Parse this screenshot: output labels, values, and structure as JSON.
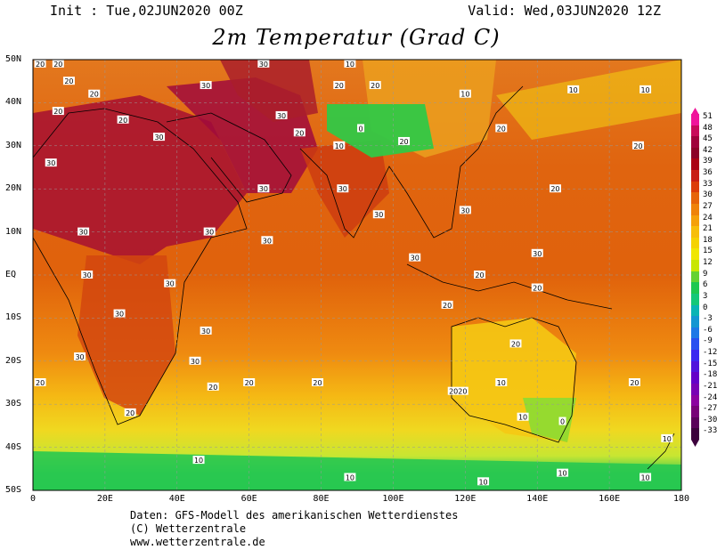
{
  "header": {
    "init": "Init : Tue,02JUN2020 00Z",
    "valid": "Valid: Wed,03JUN2020 12Z",
    "title": "2m Temperatur (Grad C)"
  },
  "axes": {
    "lat_labels": [
      "50N",
      "40N",
      "30N",
      "20N",
      "10N",
      "EQ",
      "10S",
      "20S",
      "30S",
      "40S",
      "50S"
    ],
    "lon_labels": [
      "0",
      "20E",
      "40E",
      "60E",
      "80E",
      "100E",
      "120E",
      "140E",
      "160E",
      "180"
    ]
  },
  "legend": {
    "labels": [
      "51",
      "48",
      "45",
      "42",
      "39",
      "36",
      "33",
      "30",
      "27",
      "24",
      "21",
      "18",
      "15",
      "12",
      "9",
      "6",
      "3",
      "0",
      "-3",
      "-6",
      "-9",
      "-12",
      "-15",
      "-18",
      "-21",
      "-24",
      "-27",
      "-30",
      "-33"
    ],
    "colors": [
      "#f0149b",
      "#c80a5a",
      "#a0003c",
      "#8c0028",
      "#aa0014",
      "#c81e14",
      "#dc3c0a",
      "#e6640a",
      "#ef820a",
      "#f5a00a",
      "#f7be0a",
      "#f5d200",
      "#f0e600",
      "#c8e600",
      "#64d232",
      "#1ec850",
      "#14c878",
      "#0ab4b4",
      "#1496d2",
      "#1e78e6",
      "#2850f0",
      "#3c28f0",
      "#5014dc",
      "#6400c8",
      "#7800b4",
      "#8c00a0",
      "#780078",
      "#5a005a",
      "#3c003c"
    ]
  },
  "credits": {
    "line1": "Daten: GFS-Modell des amerikanischen Wetterdienstes",
    "line2": "(C) Wetterzentrale",
    "line3": "www.wetterzentrale.de"
  },
  "contour_labels": [
    {
      "t": "20",
      "lon": 2,
      "lat": 49
    },
    {
      "t": "20",
      "lon": 7,
      "lat": 49
    },
    {
      "t": "30",
      "lon": 64,
      "lat": 49
    },
    {
      "t": "10",
      "lon": 88,
      "lat": 49
    },
    {
      "t": "20",
      "lon": 10,
      "lat": 45
    },
    {
      "t": "20",
      "lon": 17,
      "lat": 42
    },
    {
      "t": "30",
      "lon": 48,
      "lat": 44
    },
    {
      "t": "20",
      "lon": 85,
      "lat": 44
    },
    {
      "t": "20",
      "lon": 95,
      "lat": 44
    },
    {
      "t": "10",
      "lon": 120,
      "lat": 42
    },
    {
      "t": "10",
      "lon": 150,
      "lat": 43
    },
    {
      "t": "10",
      "lon": 170,
      "lat": 43
    },
    {
      "t": "20",
      "lon": 7,
      "lat": 38
    },
    {
      "t": "20",
      "lon": 25,
      "lat": 36
    },
    {
      "t": "30",
      "lon": 35,
      "lat": 32
    },
    {
      "t": "30",
      "lon": 69,
      "lat": 37
    },
    {
      "t": "20",
      "lon": 74,
      "lat": 33
    },
    {
      "t": "0",
      "lon": 91,
      "lat": 34
    },
    {
      "t": "10",
      "lon": 85,
      "lat": 30
    },
    {
      "t": "20",
      "lon": 103,
      "lat": 31
    },
    {
      "t": "20",
      "lon": 130,
      "lat": 34
    },
    {
      "t": "20",
      "lon": 168,
      "lat": 30
    },
    {
      "t": "30",
      "lon": 5,
      "lat": 26
    },
    {
      "t": "30",
      "lon": 64,
      "lat": 20
    },
    {
      "t": "30",
      "lon": 86,
      "lat": 20
    },
    {
      "t": "30",
      "lon": 96,
      "lat": 14
    },
    {
      "t": "30",
      "lon": 120,
      "lat": 15
    },
    {
      "t": "20",
      "lon": 145,
      "lat": 20
    },
    {
      "t": "30",
      "lon": 14,
      "lat": 10
    },
    {
      "t": "30",
      "lon": 49,
      "lat": 10
    },
    {
      "t": "30",
      "lon": 65,
      "lat": 8
    },
    {
      "t": "30",
      "lon": 106,
      "lat": 4
    },
    {
      "t": "30",
      "lon": 140,
      "lat": 5
    },
    {
      "t": "30",
      "lon": 15,
      "lat": 0
    },
    {
      "t": "30",
      "lon": 38,
      "lat": -2
    },
    {
      "t": "20",
      "lon": 124,
      "lat": 0
    },
    {
      "t": "20",
      "lon": 140,
      "lat": -3
    },
    {
      "t": "20",
      "lon": 115,
      "lat": -7
    },
    {
      "t": "30",
      "lon": 24,
      "lat": -9
    },
    {
      "t": "30",
      "lon": 48,
      "lat": -13
    },
    {
      "t": "20",
      "lon": 134,
      "lat": -16
    },
    {
      "t": "30",
      "lon": 13,
      "lat": -19
    },
    {
      "t": "30",
      "lon": 45,
      "lat": -20
    },
    {
      "t": "20",
      "lon": 2,
      "lat": -25
    },
    {
      "t": "20",
      "lon": 50,
      "lat": -26
    },
    {
      "t": "20",
      "lon": 60,
      "lat": -25
    },
    {
      "t": "20",
      "lon": 79,
      "lat": -25
    },
    {
      "t": "2020",
      "lon": 118,
      "lat": -27
    },
    {
      "t": "10",
      "lon": 130,
      "lat": -25
    },
    {
      "t": "20",
      "lon": 167,
      "lat": -25
    },
    {
      "t": "20",
      "lon": 27,
      "lat": -32
    },
    {
      "t": "10",
      "lon": 136,
      "lat": -33
    },
    {
      "t": "0",
      "lon": 147,
      "lat": -34
    },
    {
      "t": "10",
      "lon": 176,
      "lat": -38
    },
    {
      "t": "10",
      "lon": 46,
      "lat": -43
    },
    {
      "t": "10",
      "lon": 88,
      "lat": -47
    },
    {
      "t": "10",
      "lon": 125,
      "lat": -48
    },
    {
      "t": "10",
      "lon": 147,
      "lat": -46
    },
    {
      "t": "10",
      "lon": 170,
      "lat": -47
    }
  ]
}
